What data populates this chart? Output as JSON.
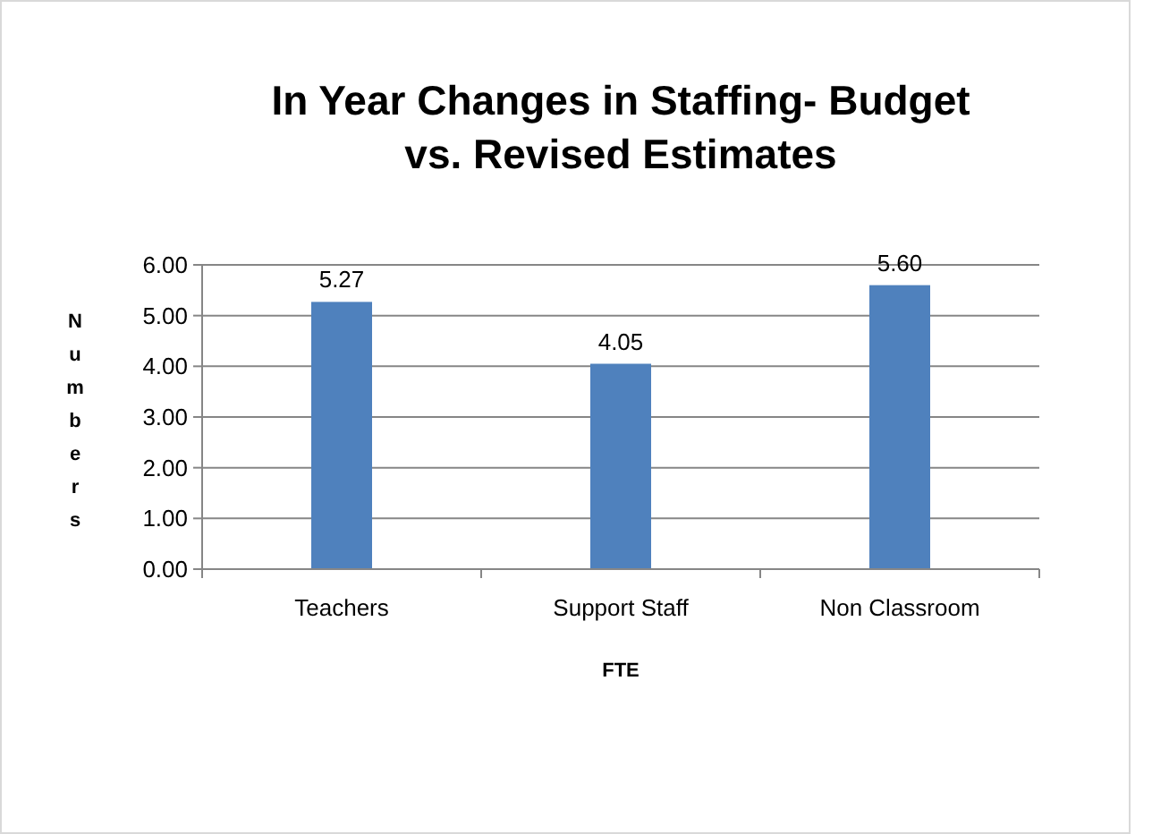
{
  "chart_data": {
    "type": "bar",
    "title": "In Year Changes in Staffing- Budget vs. Revised Estimates",
    "xlabel": "FTE",
    "ylabel": "Numbers",
    "categories": [
      "Teachers",
      "Support Staff",
      "Non Classroom"
    ],
    "values": [
      5.27,
      4.05,
      5.6
    ],
    "color": "#4f81bd",
    "value_labels": [
      "5.27",
      "4.05",
      "5.60"
    ],
    "ylim": [
      0,
      6
    ],
    "yticks": [
      {
        "value": 0,
        "label": "0.00"
      },
      {
        "value": 1,
        "label": "1.00"
      },
      {
        "value": 2,
        "label": "2.00"
      },
      {
        "value": 3,
        "label": "3.00"
      },
      {
        "value": 4,
        "label": "4.00"
      },
      {
        "value": 5,
        "label": "5.00"
      },
      {
        "value": 6,
        "label": "6.00"
      }
    ],
    "grid": "y"
  }
}
